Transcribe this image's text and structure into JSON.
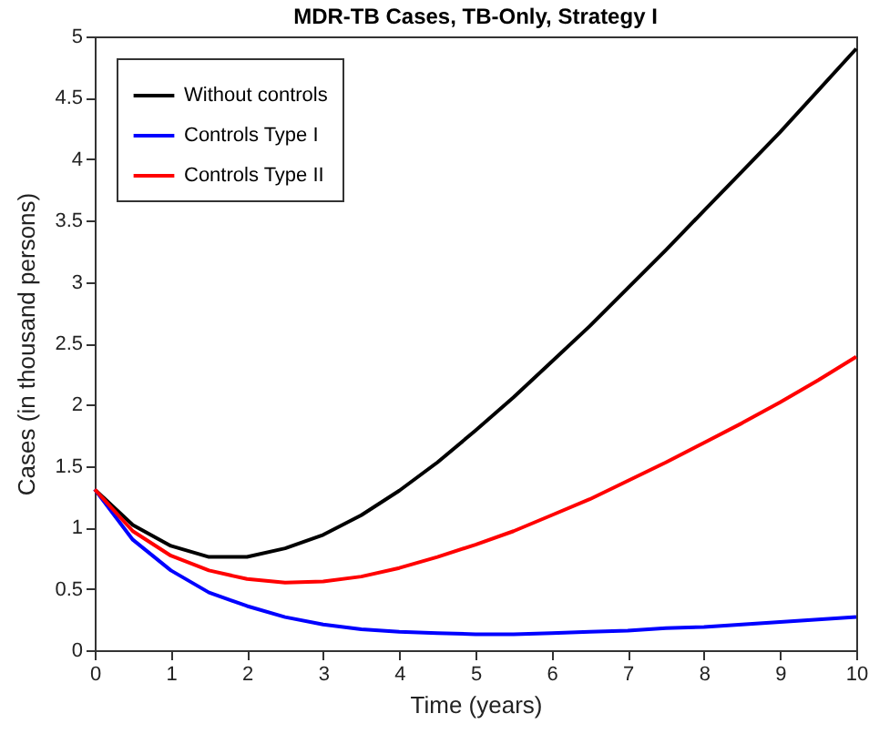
{
  "chart_data": {
    "type": "line",
    "title": "MDR-TB Cases, TB-Only, Strategy I",
    "xlabel": "Time (years)",
    "ylabel": "Cases (in thousand persons)",
    "x": [
      0,
      0.5,
      1,
      1.5,
      2,
      2.5,
      3,
      3.5,
      4,
      4.5,
      5,
      5.5,
      6,
      6.5,
      7,
      7.5,
      8,
      8.5,
      9,
      9.5,
      10
    ],
    "series": [
      {
        "name": "Without controls",
        "color": "#000000",
        "values": [
          1.31,
          1.02,
          0.85,
          0.76,
          0.76,
          0.83,
          0.94,
          1.1,
          1.3,
          1.53,
          1.79,
          2.06,
          2.35,
          2.64,
          2.95,
          3.26,
          3.58,
          3.9,
          4.22,
          4.56,
          4.9
        ]
      },
      {
        "name": "Controls Type I",
        "color": "#0000ff",
        "values": [
          1.31,
          0.9,
          0.65,
          0.47,
          0.36,
          0.27,
          0.21,
          0.17,
          0.15,
          0.14,
          0.13,
          0.13,
          0.14,
          0.15,
          0.16,
          0.18,
          0.19,
          0.21,
          0.23,
          0.25,
          0.27
        ]
      },
      {
        "name": "Controls Type II",
        "color": "#ff0000",
        "values": [
          1.31,
          0.97,
          0.77,
          0.65,
          0.58,
          0.55,
          0.56,
          0.6,
          0.67,
          0.76,
          0.86,
          0.97,
          1.1,
          1.23,
          1.38,
          1.53,
          1.69,
          1.85,
          2.02,
          2.2,
          2.39
        ]
      }
    ],
    "xlim": [
      0,
      10
    ],
    "xticks": [
      0,
      1,
      2,
      3,
      4,
      5,
      6,
      7,
      8,
      9,
      10
    ],
    "ylim": [
      0,
      5
    ],
    "yticks": [
      0,
      0.5,
      1,
      1.5,
      2,
      2.5,
      3,
      3.5,
      4,
      4.5,
      5
    ],
    "legend": "top left",
    "grid": false,
    "marker": "none",
    "line_style": "solid"
  }
}
